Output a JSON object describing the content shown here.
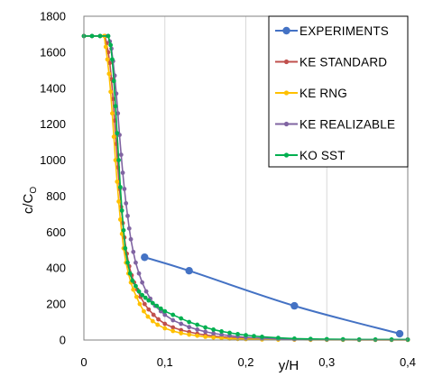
{
  "chart_data": {
    "type": "line",
    "xlabel": "y/H",
    "ylabel_main": "c/C",
    "ylabel_sub": "O",
    "xlim": [
      0,
      0.4
    ],
    "ylim": [
      0,
      1800
    ],
    "x_ticks": [
      0,
      0.1,
      0.2,
      0.3,
      0.4
    ],
    "x_tick_labels": [
      "0",
      "0,1",
      "0,2",
      "0,3",
      "0,4"
    ],
    "y_ticks": [
      0,
      200,
      400,
      600,
      800,
      1000,
      1200,
      1400,
      1600,
      1800
    ],
    "y_tick_labels": [
      "0",
      "200",
      "400",
      "600",
      "800",
      "1000",
      "1200",
      "1400",
      "1600",
      "1800"
    ],
    "grid": "vertical",
    "legend_position": "top-right",
    "series": [
      {
        "name": "EXPERIMENTS",
        "color": "#4472C4",
        "smooth": true,
        "marker_size": 4.2,
        "x": [
          0.075,
          0.13,
          0.26,
          0.39
        ],
        "y": [
          460,
          385,
          190,
          35
        ]
      },
      {
        "name": "KE STANDARD",
        "color": "#C0504D",
        "marker_size": 2.4,
        "x": [
          0.0,
          0.01,
          0.02,
          0.026,
          0.028,
          0.03,
          0.032,
          0.034,
          0.036,
          0.038,
          0.04,
          0.042,
          0.044,
          0.046,
          0.048,
          0.05,
          0.053,
          0.056,
          0.059,
          0.062,
          0.066,
          0.07,
          0.075,
          0.08,
          0.086,
          0.092,
          0.1,
          0.11,
          0.12,
          0.13,
          0.14,
          0.15,
          0.16,
          0.17,
          0.18,
          0.19,
          0.2,
          0.22,
          0.24,
          0.26,
          0.28,
          0.3,
          0.32,
          0.34,
          0.36,
          0.38,
          0.4
        ],
        "y": [
          1690,
          1690,
          1690,
          1690,
          1650,
          1600,
          1540,
          1450,
          1340,
          1220,
          1090,
          960,
          840,
          740,
          650,
          570,
          480,
          410,
          360,
          320,
          280,
          240,
          200,
          170,
          140,
          115,
          90,
          70,
          55,
          45,
          35,
          28,
          22,
          17,
          14,
          11,
          9,
          6,
          4,
          3,
          2,
          2,
          2,
          1,
          1,
          1,
          1
        ]
      },
      {
        "name": "KE RNG",
        "color": "#FFC000",
        "marker_size": 2.4,
        "x": [
          0.0,
          0.01,
          0.02,
          0.025,
          0.027,
          0.029,
          0.031,
          0.033,
          0.035,
          0.037,
          0.039,
          0.041,
          0.043,
          0.045,
          0.047,
          0.049,
          0.052,
          0.055,
          0.058,
          0.061,
          0.065,
          0.069,
          0.074,
          0.079,
          0.085,
          0.091,
          0.1,
          0.11,
          0.12,
          0.13,
          0.14,
          0.15,
          0.16,
          0.17,
          0.18,
          0.19,
          0.2,
          0.22,
          0.24,
          0.26,
          0.28,
          0.3,
          0.32,
          0.34,
          0.36,
          0.38,
          0.4
        ],
        "y": [
          1690,
          1690,
          1690,
          1690,
          1630,
          1560,
          1480,
          1380,
          1260,
          1130,
          1000,
          880,
          770,
          670,
          590,
          510,
          430,
          370,
          320,
          280,
          240,
          200,
          160,
          130,
          105,
          85,
          65,
          50,
          38,
          30,
          24,
          18,
          14,
          11,
          8,
          6,
          5,
          3,
          2,
          2,
          1,
          1,
          1,
          1,
          1,
          1,
          1
        ]
      },
      {
        "name": "KE REALIZABLE",
        "color": "#8064A2",
        "marker_size": 2.4,
        "x": [
          0.0,
          0.01,
          0.02,
          0.03,
          0.032,
          0.034,
          0.036,
          0.038,
          0.04,
          0.042,
          0.044,
          0.046,
          0.048,
          0.05,
          0.052,
          0.054,
          0.056,
          0.058,
          0.061,
          0.064,
          0.068,
          0.072,
          0.077,
          0.082,
          0.088,
          0.095,
          0.1,
          0.11,
          0.12,
          0.13,
          0.14,
          0.15,
          0.16,
          0.17,
          0.18,
          0.19,
          0.2,
          0.22,
          0.24,
          0.26,
          0.28,
          0.3,
          0.32,
          0.34,
          0.36,
          0.38,
          0.4
        ],
        "y": [
          1690,
          1690,
          1690,
          1690,
          1660,
          1620,
          1550,
          1470,
          1370,
          1260,
          1140,
          1030,
          930,
          840,
          760,
          690,
          620,
          560,
          490,
          430,
          370,
          320,
          270,
          230,
          190,
          160,
          140,
          110,
          90,
          72,
          58,
          46,
          37,
          30,
          24,
          19,
          15,
          10,
          7,
          5,
          4,
          3,
          3,
          2,
          2,
          2,
          2
        ]
      },
      {
        "name": "KO SST",
        "color": "#00B050",
        "marker_size": 2.4,
        "x": [
          0.0,
          0.01,
          0.02,
          0.03,
          0.033,
          0.035,
          0.037,
          0.039,
          0.041,
          0.043,
          0.045,
          0.047,
          0.049,
          0.051,
          0.054,
          0.057,
          0.06,
          0.064,
          0.068,
          0.072,
          0.076,
          0.08,
          0.085,
          0.09,
          0.095,
          0.1,
          0.11,
          0.12,
          0.13,
          0.14,
          0.15,
          0.16,
          0.17,
          0.18,
          0.19,
          0.2,
          0.21,
          0.22,
          0.24,
          0.26,
          0.28,
          0.3,
          0.32,
          0.34,
          0.36,
          0.38,
          0.4
        ],
        "y": [
          1690,
          1690,
          1690,
          1690,
          1640,
          1560,
          1440,
          1300,
          1150,
          1000,
          850,
          720,
          610,
          510,
          430,
          370,
          330,
          300,
          270,
          250,
          235,
          220,
          205,
          190,
          175,
          160,
          140,
          120,
          100,
          85,
          70,
          58,
          48,
          40,
          33,
          27,
          22,
          18,
          12,
          8,
          6,
          5,
          4,
          3,
          3,
          3,
          3
        ]
      }
    ]
  }
}
